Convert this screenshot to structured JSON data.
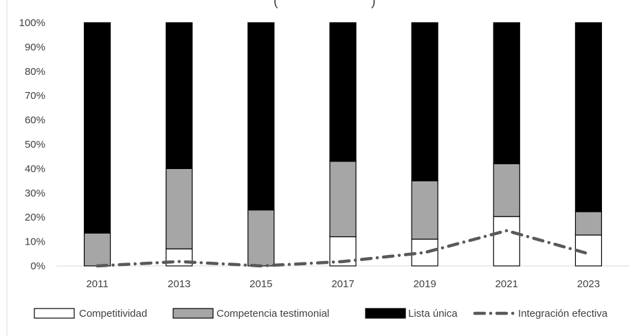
{
  "chart_data": {
    "type": "bar",
    "stacked": true,
    "title": "(",
    "categories": [
      "2011",
      "2013",
      "2015",
      "2017",
      "2019",
      "2021",
      "2023"
    ],
    "ylim": [
      0,
      100
    ],
    "yticks": [
      "0%",
      "10%",
      "20%",
      "30%",
      "40%",
      "50%",
      "60%",
      "70%",
      "80%",
      "90%",
      "100%"
    ],
    "grid": false,
    "legend_position": "bottom",
    "series": [
      {
        "name": "Competitividad",
        "kind": "bar",
        "color": "#ffffff",
        "values": [
          0,
          7,
          0,
          12,
          11,
          20.3,
          12.7
        ]
      },
      {
        "name": "Competencia testimonial",
        "kind": "bar",
        "color": "#a6a6a6",
        "values": [
          13.5,
          33,
          23,
          31,
          24,
          21.7,
          9.6
        ]
      },
      {
        "name": "Lista única",
        "kind": "bar",
        "color": "#000000",
        "values": [
          86.5,
          60,
          77,
          57,
          65,
          58,
          77.7
        ]
      },
      {
        "name": "Integración efectiva",
        "kind": "line",
        "style": "dash-dot",
        "color": "#595959",
        "values": [
          0,
          1.8,
          0,
          1.8,
          5.5,
          14.5,
          5
        ]
      }
    ]
  }
}
